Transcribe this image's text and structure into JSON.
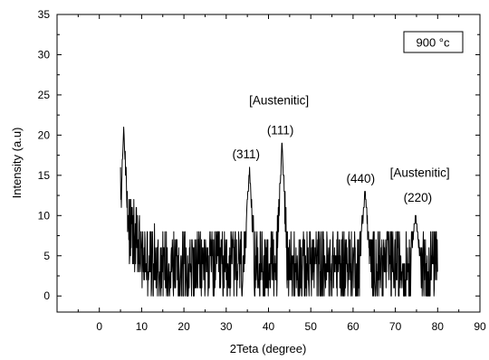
{
  "chart_data": {
    "type": "line",
    "xlabel": "2Teta (degree)",
    "ylabel": "Intensity (a.u)",
    "xlim": [
      -10,
      90
    ],
    "ylim": [
      -2,
      35
    ],
    "x_ticks": [
      0,
      10,
      20,
      30,
      40,
      50,
      60,
      70,
      80,
      90
    ],
    "y_ticks": [
      0,
      5,
      10,
      15,
      20,
      25,
      30,
      35
    ],
    "legend": "900 °c",
    "legend_position": "top-right",
    "grid": false,
    "line_color": "#000000",
    "x_range": [
      5,
      80
    ],
    "peaks": [
      {
        "x": 5.8,
        "y": 21
      },
      {
        "x": 35.5,
        "y": 16
      },
      {
        "x": 43.2,
        "y": 19
      },
      {
        "x": 62.8,
        "y": 13
      },
      {
        "x": 74.8,
        "y": 10
      }
    ],
    "annotations": [
      {
        "text": "[Austenitic]",
        "x": 42.5,
        "y": 23.8
      },
      {
        "text": "(111)",
        "x": 42.8,
        "y": 20.1
      },
      {
        "text": "(311)",
        "x": 34.7,
        "y": 17.1
      },
      {
        "text": "(440)",
        "x": 61.8,
        "y": 14.1
      },
      {
        "text": "[Austenitic]",
        "x": 75.8,
        "y": 14.8
      },
      {
        "text": "(220)",
        "x": 75.3,
        "y": 11.7
      }
    ]
  }
}
